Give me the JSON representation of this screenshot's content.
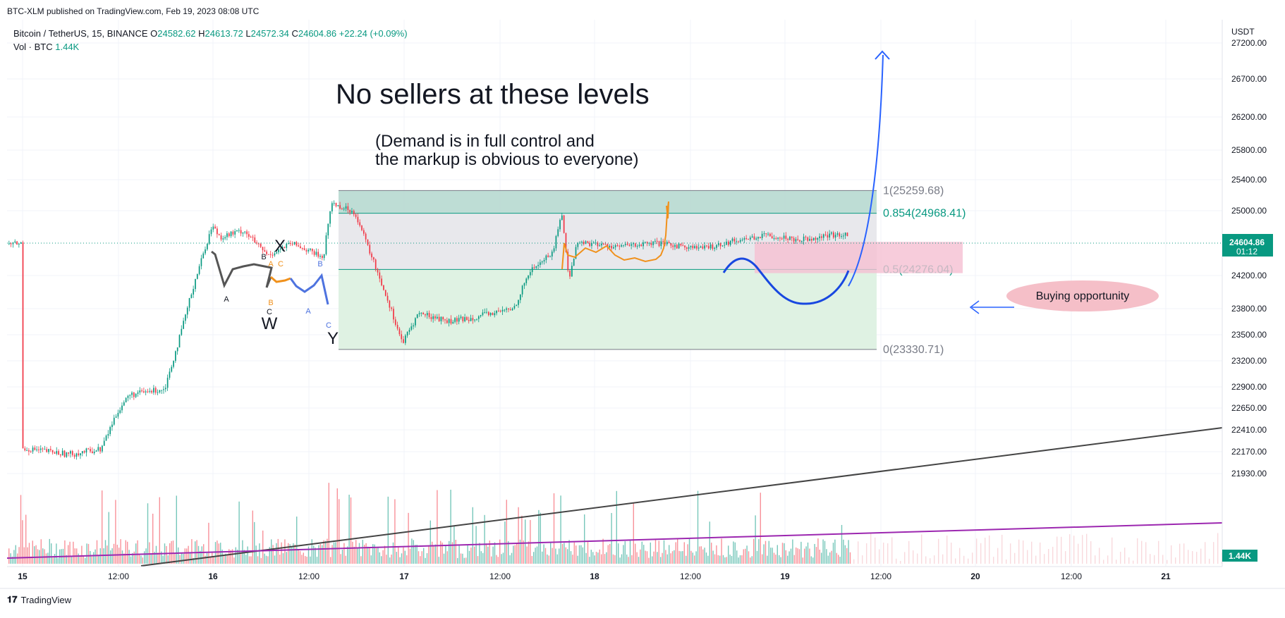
{
  "header": {
    "published": "BTC-XLM published on TradingView.com, Feb 19, 2023 08:08 UTC",
    "symbol": "Bitcoin / TetherUS, 15, BINANCE",
    "o_label": "O",
    "o_value": "24582.62",
    "h_label": "H",
    "h_value": "24613.72",
    "l_label": "L",
    "l_value": "24572.34",
    "c_label": "C",
    "c_value": "24604.86",
    "change": "+22.24 (+0.09%)",
    "vol_label": "Vol · BTC",
    "vol_value": "1.44K"
  },
  "footer": {
    "brand": "TradingView"
  },
  "chart_data": {
    "type": "candlestick",
    "currency": "USDT",
    "y_ticks": [
      27200,
      26700,
      26200,
      25800,
      25400,
      25000,
      24200,
      23800,
      23500,
      23200,
      22900,
      22650,
      22410,
      22170,
      21930
    ],
    "y_tick_labels": [
      "27200.00",
      "26700.00",
      "26200.00",
      "25800.00",
      "25400.00",
      "25000.00",
      "24200.00",
      "23800.00",
      "23500.00",
      "23200.00",
      "22900.00",
      "22650.00",
      "22410.00",
      "22170.00",
      "21930.00"
    ],
    "x_tick_labels": [
      "15",
      "12:00",
      "16",
      "12:00",
      "17",
      "12:00",
      "18",
      "12:00",
      "19",
      "12:00",
      "20",
      "12:00",
      "21"
    ],
    "last_price": "24604.86",
    "countdown": "01:12",
    "volume_badge": "1.44K",
    "price_anchors": [
      {
        "t": "Feb 15 00:00",
        "p": 22210
      },
      {
        "t": "Feb 15 06:00",
        "p": 22140
      },
      {
        "t": "Feb 15 10:00",
        "p": 22200
      },
      {
        "t": "Feb 15 12:00",
        "p": 22600
      },
      {
        "t": "Feb 15 13:30",
        "p": 22800
      },
      {
        "t": "Feb 15 18:00",
        "p": 22880
      },
      {
        "t": "Feb 15 20:00",
        "p": 23500
      },
      {
        "t": "Feb 15 22:00",
        "p": 24200
      },
      {
        "t": "Feb 16 00:00",
        "p": 24820
      },
      {
        "t": "Feb 16 01:00",
        "p": 24680
      },
      {
        "t": "Feb 16 04:00",
        "p": 24760
      },
      {
        "t": "Feb 16 07:00",
        "p": 24450
      },
      {
        "t": "Feb 16 10:00",
        "p": 24600
      },
      {
        "t": "Feb 16 12:00",
        "p": 24520
      },
      {
        "t": "Feb 16 14:00",
        "p": 24420
      },
      {
        "t": "Feb 16 15:00",
        "p": 25100
      },
      {
        "t": "Feb 16 18:00",
        "p": 24980
      },
      {
        "t": "Feb 16 21:00",
        "p": 24200
      },
      {
        "t": "Feb 17 00:00",
        "p": 23400
      },
      {
        "t": "Feb 17 02:00",
        "p": 23750
      },
      {
        "t": "Feb 17 06:00",
        "p": 23650
      },
      {
        "t": "Feb 17 10:00",
        "p": 23720
      },
      {
        "t": "Feb 17 14:00",
        "p": 23800
      },
      {
        "t": "Feb 17 16:00",
        "p": 24250
      },
      {
        "t": "Feb 17 19:00",
        "p": 24500
      },
      {
        "t": "Feb 17 20:00",
        "p": 25000
      },
      {
        "t": "Feb 17 21:00",
        "p": 24150
      },
      {
        "t": "Feb 17 22:00",
        "p": 24620
      },
      {
        "t": "Feb 18 03:00",
        "p": 24560
      },
      {
        "t": "Feb 18 08:00",
        "p": 24600
      },
      {
        "t": "Feb 18 14:00",
        "p": 24540
      },
      {
        "t": "Feb 18 18:00",
        "p": 24640
      },
      {
        "t": "Feb 18 22:00",
        "p": 24700
      },
      {
        "t": "Feb 19 02:00",
        "p": 24650
      },
      {
        "t": "Feb 19 06:00",
        "p": 24700
      },
      {
        "t": "Feb 19 10:00",
        "p": 24720
      },
      {
        "t": "Feb 19 12:00",
        "p": 24780
      },
      {
        "t": "Feb 19 13:00",
        "p": 24600
      }
    ],
    "fib_levels": [
      {
        "label": "1(25259.68)",
        "value": 25259.68
      },
      {
        "label": "0.854(24968.41)",
        "value": 24968.41
      },
      {
        "label": "0.5(24276.04)",
        "value": 24276.04
      },
      {
        "label": "0(23330.71)",
        "value": 23330.71
      }
    ],
    "annotations": {
      "headline": "No sellers at these levels",
      "subtext_line1": "(Demand is in full control and",
      "subtext_line2": "the markup is obvious to everyone)",
      "callout": "Buying opportunity",
      "wave_labels": [
        "X",
        "W",
        "Y",
        "A",
        "B",
        "C",
        "A",
        "B",
        "C",
        "A",
        "B",
        "C"
      ]
    },
    "colors": {
      "up": "#089981",
      "down": "#f23645",
      "fib_top": "#b7d9d0",
      "fib_mid": "#e8e8ec",
      "fib_bottom": "#dff2e3",
      "zone": "#f5bfd2",
      "projection": "#2962ff",
      "path": "#1848e0",
      "orange": "#f0911c",
      "trend1": "#444444",
      "trend2": "#9c27b0"
    }
  }
}
